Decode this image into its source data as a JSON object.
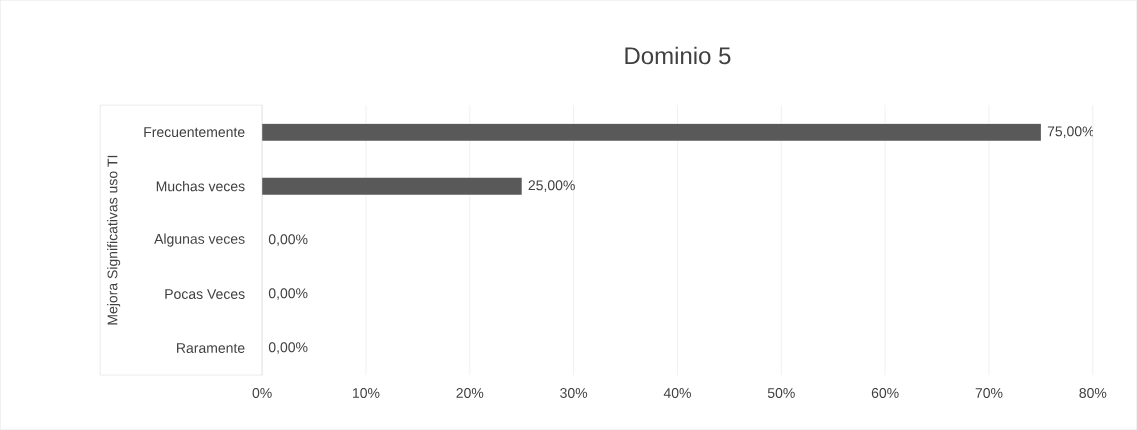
{
  "chart_data": {
    "type": "bar",
    "orientation": "horizontal",
    "title": "Dominio 5",
    "ylabel": "Mejora Significativas uso TI",
    "categories": [
      "Frecuentemente",
      "Muchas veces",
      "Algunas veces",
      "Pocas Veces",
      "Raramente"
    ],
    "values": [
      75,
      25,
      0,
      0,
      0
    ],
    "color": "#595959",
    "value_labels": [
      "75,00%",
      "25,00%",
      "0,00%",
      "0,00%",
      "0,00%"
    ],
    "xlim": [
      0,
      80
    ],
    "xticks": [
      {
        "value": 0,
        "label": "0%"
      },
      {
        "value": 10,
        "label": "10%"
      },
      {
        "value": 20,
        "label": "20%"
      },
      {
        "value": 30,
        "label": "30%"
      },
      {
        "value": 40,
        "label": "40%"
      },
      {
        "value": 50,
        "label": "50%"
      },
      {
        "value": 60,
        "label": "60%"
      },
      {
        "value": 70,
        "label": "70%"
      },
      {
        "value": 80,
        "label": "80%"
      }
    ],
    "grid": "x"
  }
}
